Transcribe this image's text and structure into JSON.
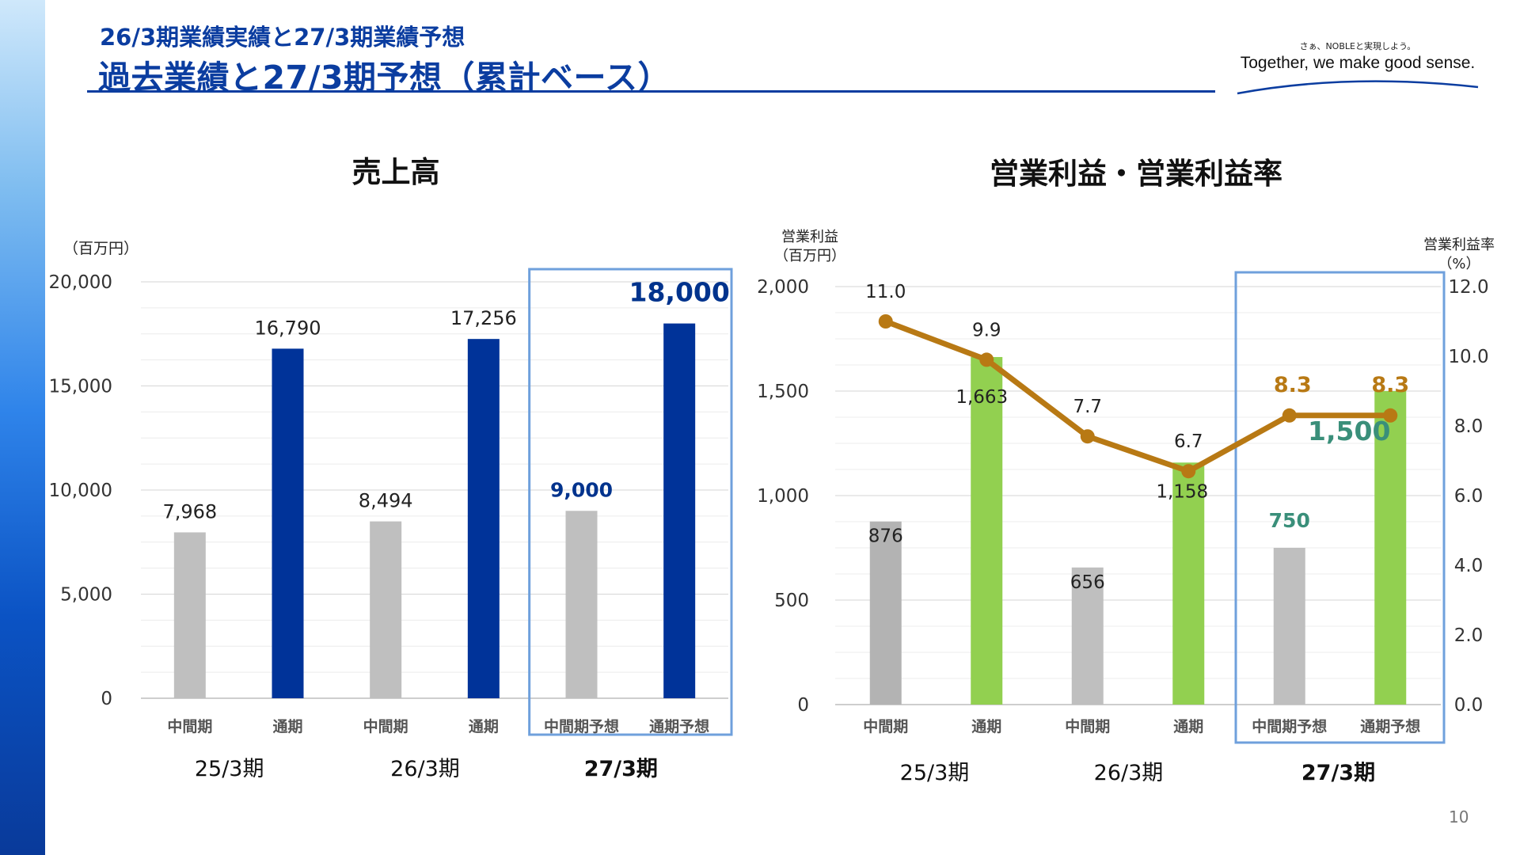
{
  "header": {
    "subtitle": "26/3期業績実績と27/3期業績予想",
    "title": "過去業績と27/3期予想（累計ベース）"
  },
  "logo": {
    "tagline": "さぁ、NOBLEと実現しよう。",
    "text": "Together, we make good sense."
  },
  "page_number": "10",
  "colors": {
    "accent": "#0b3da0",
    "navy_bar": "#003399",
    "gray_bar": "#bfbfbf",
    "dark_gray_bar": "#b3b3b3",
    "green_bar": "#92d050",
    "line": "#b87914",
    "forecast_box": "#6fa0dc",
    "forecast_sales_label": "#00338d",
    "forecast_op_label": "#3a8f7a",
    "forecast_rate_label": "#b87914"
  },
  "chart_data": [
    {
      "type": "bar",
      "title": "売上高",
      "unit_label": "（百万円）",
      "categories": [
        "中間期",
        "通期",
        "中間期",
        "通期",
        "中間期予想",
        "通期予想"
      ],
      "groups": [
        "25/3期",
        "26/3期",
        "27/3期"
      ],
      "values": [
        7968,
        16790,
        8494,
        17256,
        9000,
        18000
      ],
      "value_labels": [
        "7,968",
        "16,790",
        "8,494",
        "17,256",
        "9,000",
        "18,000"
      ],
      "bar_kinds": [
        "interim",
        "full",
        "interim",
        "full",
        "interim",
        "full"
      ],
      "forecast_from_index": 4,
      "ylim": [
        0,
        20000
      ],
      "yticks": [
        0,
        5000,
        10000,
        15000,
        20000
      ],
      "ytick_labels": [
        "0",
        "5,000",
        "10,000",
        "15,000",
        "20,000"
      ],
      "grid": true
    },
    {
      "type": "bar+line",
      "title": "営業利益・営業利益率",
      "left_axis_label_1": "営業利益",
      "left_axis_label_2": "（百万円）",
      "right_axis_label_1": "営業利益率",
      "right_axis_label_2": "（%）",
      "categories": [
        "中間期",
        "通期",
        "中間期",
        "通期",
        "中間期予想",
        "通期予想"
      ],
      "groups": [
        "25/3期",
        "26/3期",
        "27/3期"
      ],
      "bar_values": [
        876,
        1663,
        656,
        1158,
        750,
        1500
      ],
      "bar_labels": [
        "876",
        "1,663",
        "656",
        "1,158",
        "750",
        "1,500"
      ],
      "bar_kinds": [
        "interim_dark",
        "full",
        "interim",
        "full",
        "interim",
        "full"
      ],
      "line_values": [
        11.0,
        9.9,
        7.7,
        6.7,
        8.3,
        8.3
      ],
      "line_labels": [
        "11.0",
        "9.9",
        "7.7",
        "6.7",
        "8.3",
        "8.3"
      ],
      "forecast_from_index": 4,
      "ylim_left": [
        0,
        2000
      ],
      "yticks_left": [
        0,
        500,
        1000,
        1500,
        2000
      ],
      "ytick_labels_left": [
        "0",
        "500",
        "1,000",
        "1,500",
        "2,000"
      ],
      "ylim_right": [
        0,
        12
      ],
      "yticks_right": [
        0,
        2,
        4,
        6,
        8,
        10,
        12
      ],
      "ytick_labels_right": [
        "0.0",
        "2.0",
        "4.0",
        "6.0",
        "8.0",
        "10.0",
        "12.0"
      ],
      "grid": true
    }
  ]
}
